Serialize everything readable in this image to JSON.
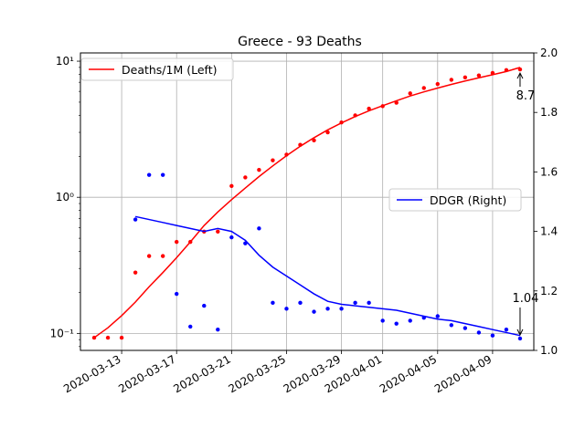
{
  "chart_data": {
    "type": "line",
    "title": "Greece - 93 Deaths",
    "x_dates": [
      "2020-03-11",
      "2020-03-12",
      "2020-03-13",
      "2020-03-14",
      "2020-03-15",
      "2020-03-16",
      "2020-03-17",
      "2020-03-18",
      "2020-03-19",
      "2020-03-20",
      "2020-03-21",
      "2020-03-22",
      "2020-03-23",
      "2020-03-24",
      "2020-03-25",
      "2020-03-26",
      "2020-03-27",
      "2020-03-28",
      "2020-03-29",
      "2020-03-30",
      "2020-03-31",
      "2020-04-01",
      "2020-04-02",
      "2020-04-03",
      "2020-04-04",
      "2020-04-05",
      "2020-04-06",
      "2020-04-07",
      "2020-04-08",
      "2020-04-09",
      "2020-04-10",
      "2020-04-11"
    ],
    "x_tick_labels": [
      "2020-03-13",
      "2020-03-17",
      "2020-03-21",
      "2020-03-25",
      "2020-03-29",
      "2020-04-01",
      "2020-04-05",
      "2020-04-09"
    ],
    "x_tick_dates": [
      "2020-03-13",
      "2020-03-17",
      "2020-03-21",
      "2020-03-25",
      "2020-03-29",
      "2020-04-01",
      "2020-04-05",
      "2020-04-09"
    ],
    "x_range": [
      "2020-03-10",
      "2020-04-12"
    ],
    "left_axis": {
      "scale": "log",
      "ylim": [
        0.075,
        11.5
      ],
      "tick_labels": [
        "10⁻¹",
        "10⁰",
        "10¹"
      ],
      "tick_values": [
        0.1,
        1,
        10
      ]
    },
    "right_axis": {
      "scale": "linear",
      "ylim": [
        1.0,
        2.0
      ],
      "tick_labels": [
        "1.0",
        "1.2",
        "1.4",
        "1.6",
        "1.8",
        "2.0"
      ],
      "tick_values": [
        1.0,
        1.2,
        1.4,
        1.6,
        1.8,
        2.0
      ]
    },
    "grid": true,
    "series": [
      {
        "name": "Deaths/1M (Left)",
        "axis": "left",
        "color": "#ff0000",
        "points": [
          0.093,
          0.093,
          0.093,
          0.28,
          0.37,
          0.37,
          0.47,
          0.47,
          0.56,
          0.56,
          1.21,
          1.4,
          1.59,
          1.87,
          2.06,
          2.43,
          2.62,
          3.0,
          3.55,
          4.0,
          4.48,
          4.67,
          4.95,
          5.8,
          6.35,
          6.8,
          7.3,
          7.6,
          7.85,
          8.2,
          8.6,
          8.7
        ],
        "trend": [
          0.093,
          0.11,
          0.135,
          0.17,
          0.22,
          0.28,
          0.36,
          0.47,
          0.62,
          0.78,
          0.96,
          1.17,
          1.42,
          1.7,
          2.02,
          2.37,
          2.74,
          3.13,
          3.52,
          3.92,
          4.32,
          4.71,
          5.12,
          5.55,
          5.95,
          6.35,
          6.75,
          7.15,
          7.55,
          7.95,
          8.4,
          9.0
        ]
      },
      {
        "name": "DDGR (Right)",
        "axis": "right",
        "color": "#0000ff",
        "points": [
          null,
          null,
          null,
          1.44,
          1.59,
          1.59,
          1.19,
          1.08,
          1.15,
          1.07,
          1.38,
          1.36,
          1.41,
          1.16,
          1.14,
          1.16,
          1.13,
          1.14,
          1.14,
          1.16,
          1.16,
          1.1,
          1.09,
          1.1,
          1.11,
          1.115,
          1.085,
          1.075,
          1.06,
          1.05,
          1.07,
          1.04
        ],
        "trend": [
          null,
          null,
          null,
          1.45,
          1.44,
          1.43,
          1.42,
          1.41,
          1.4,
          1.41,
          1.4,
          1.37,
          1.32,
          1.28,
          1.25,
          1.22,
          1.19,
          1.165,
          1.155,
          1.15,
          1.145,
          1.14,
          1.135,
          1.125,
          1.115,
          1.105,
          1.1,
          1.09,
          1.08,
          1.07,
          1.06,
          1.05
        ]
      }
    ],
    "annotations": [
      {
        "text": "8.7",
        "series": "Deaths/1M (Left)",
        "date": "2020-04-11",
        "value": 8.7
      },
      {
        "text": "1.04",
        "series": "DDGR (Right)",
        "date": "2020-04-11",
        "value": 1.04
      }
    ],
    "legends": [
      {
        "placement": "upper-left",
        "entries": [
          "Deaths/1M (Left)"
        ]
      },
      {
        "placement": "center-right",
        "entries": [
          "DDGR (Right)"
        ]
      }
    ]
  }
}
